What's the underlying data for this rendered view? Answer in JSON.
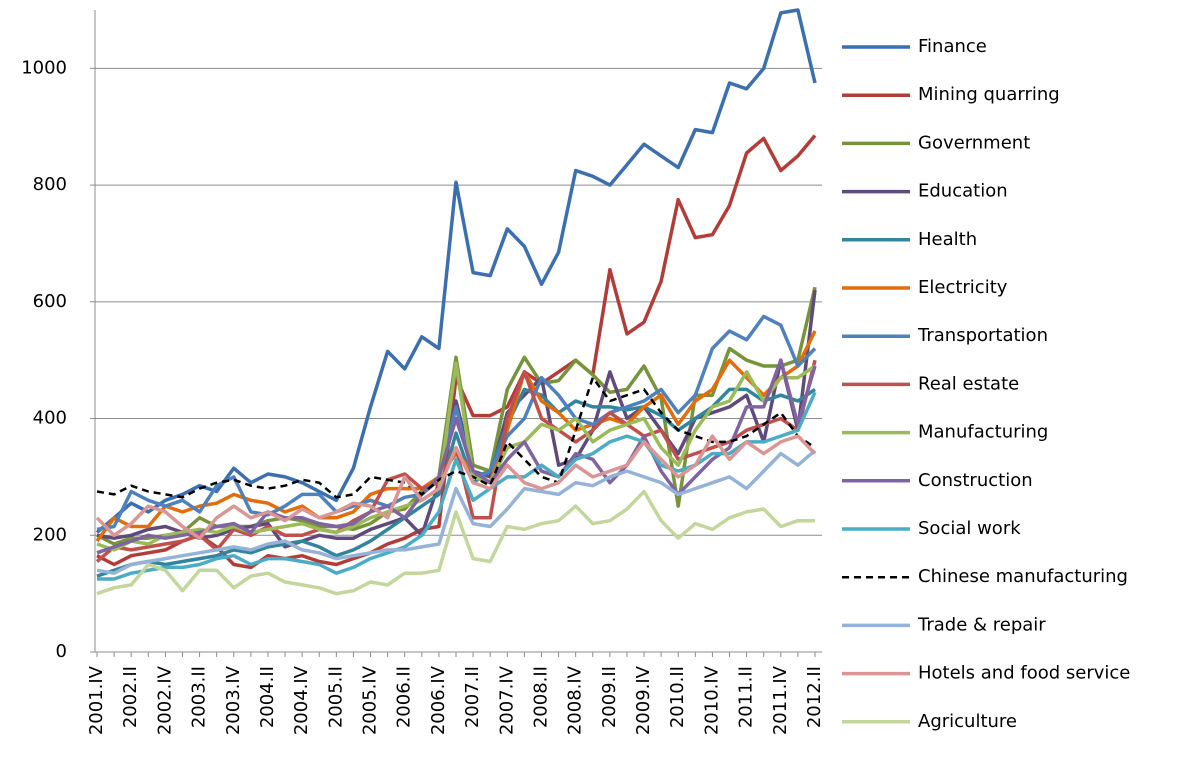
{
  "chart_data": {
    "type": "line",
    "categories": [
      "2001.IV",
      null,
      "2002.II",
      null,
      "2002.IV",
      null,
      "2003.II",
      null,
      "2003.IV",
      null,
      "2004.II",
      null,
      "2004.IV",
      null,
      "2005.II",
      null,
      "2005.IV",
      null,
      "2006.II",
      null,
      "2006.IV",
      null,
      "2007.II",
      null,
      "2007.IV",
      null,
      "2008.II",
      null,
      "2008.IV",
      null,
      "2009.II",
      null,
      "2009.IV",
      null,
      "2010.II",
      null,
      "2010.IV",
      null,
      "2011.II",
      null,
      "2011.IV",
      null,
      "2012.II"
    ],
    "ylim": [
      0,
      1100
    ],
    "yticks": [
      0,
      200,
      400,
      600,
      800,
      1000
    ],
    "grid": true,
    "legend": "right",
    "series": [
      {
        "name": "Finance",
        "color": "#3b6fb0",
        "values": [
          205,
          230,
          255,
          240,
          260,
          270,
          285,
          275,
          315,
          290,
          305,
          300,
          290,
          275,
          260,
          315,
          420,
          515,
          485,
          540,
          520,
          805,
          650,
          645,
          725,
          695,
          630,
          685,
          825,
          815,
          800,
          835,
          870,
          850,
          830,
          895,
          890,
          975,
          965,
          1000,
          1095,
          1100,
          975
        ]
      },
      {
        "name": "Mining quarring",
        "color": "#b23c38",
        "values": [
          165,
          150,
          165,
          170,
          175,
          190,
          200,
          180,
          150,
          145,
          165,
          160,
          165,
          155,
          150,
          160,
          170,
          185,
          195,
          210,
          215,
          470,
          405,
          405,
          420,
          480,
          460,
          480,
          500,
          475,
          655,
          545,
          565,
          635,
          775,
          710,
          715,
          765,
          855,
          880,
          825,
          850,
          885
        ]
      },
      {
        "name": "Government",
        "color": "#77933c",
        "values": [
          200,
          185,
          195,
          195,
          200,
          205,
          230,
          215,
          215,
          215,
          225,
          230,
          225,
          215,
          215,
          210,
          220,
          240,
          245,
          275,
          300,
          505,
          320,
          310,
          450,
          505,
          460,
          465,
          500,
          475,
          445,
          450,
          490,
          435,
          250,
          440,
          440,
          520,
          500,
          490,
          490,
          500,
          625
        ]
      },
      {
        "name": "Education",
        "color": "#604a7b",
        "values": [
          200,
          195,
          200,
          210,
          215,
          205,
          195,
          200,
          210,
          215,
          220,
          180,
          190,
          200,
          195,
          195,
          210,
          220,
          230,
          200,
          290,
          430,
          310,
          300,
          410,
          440,
          470,
          320,
          330,
          380,
          480,
          400,
          420,
          380,
          340,
          400,
          410,
          420,
          440,
          360,
          500,
          380,
          620
        ]
      },
      {
        "name": "Health",
        "color": "#31859c",
        "values": [
          130,
          140,
          150,
          155,
          150,
          155,
          160,
          165,
          175,
          170,
          180,
          185,
          190,
          180,
          165,
          175,
          190,
          210,
          230,
          250,
          270,
          375,
          290,
          310,
          390,
          450,
          440,
          410,
          430,
          420,
          420,
          415,
          420,
          405,
          380,
          400,
          420,
          450,
          450,
          430,
          440,
          430,
          450
        ]
      },
      {
        "name": "Electricity",
        "color": "#e46c0a",
        "values": [
          190,
          230,
          215,
          215,
          250,
          240,
          250,
          255,
          270,
          260,
          255,
          240,
          250,
          230,
          230,
          240,
          270,
          280,
          280,
          280,
          300,
          340,
          310,
          290,
          380,
          480,
          430,
          410,
          380,
          390,
          400,
          390,
          420,
          440,
          390,
          430,
          450,
          500,
          470,
          440,
          470,
          490,
          550
        ]
      },
      {
        "name": "Transportation",
        "color": "#4f81bd",
        "values": [
          210,
          215,
          275,
          260,
          250,
          260,
          240,
          285,
          300,
          240,
          235,
          250,
          270,
          270,
          240,
          250,
          260,
          250,
          265,
          270,
          295,
          420,
          300,
          310,
          370,
          400,
          470,
          440,
          400,
          390,
          410,
          420,
          430,
          450,
          410,
          440,
          520,
          550,
          535,
          575,
          560,
          490,
          520
        ]
      },
      {
        "name": "Real estate",
        "color": "#c0504d",
        "values": [
          155,
          180,
          175,
          180,
          185,
          190,
          200,
          175,
          210,
          200,
          215,
          200,
          200,
          210,
          205,
          225,
          240,
          295,
          305,
          280,
          290,
          350,
          230,
          230,
          400,
          480,
          400,
          380,
          360,
          380,
          410,
          390,
          370,
          380,
          330,
          340,
          350,
          360,
          380,
          390,
          400,
          380,
          500
        ]
      },
      {
        "name": "Manufacturing",
        "color": "#9bbb59",
        "values": [
          185,
          175,
          190,
          185,
          200,
          205,
          210,
          205,
          215,
          205,
          210,
          215,
          220,
          210,
          205,
          215,
          230,
          240,
          250,
          260,
          280,
          495,
          300,
          290,
          350,
          360,
          390,
          380,
          400,
          360,
          380,
          390,
          400,
          350,
          320,
          380,
          420,
          430,
          480,
          430,
          470,
          470,
          490
        ]
      },
      {
        "name": "Construction",
        "color": "#8064a2",
        "values": [
          170,
          180,
          190,
          200,
          195,
          200,
          205,
          215,
          220,
          205,
          240,
          230,
          230,
          220,
          215,
          220,
          240,
          250,
          230,
          270,
          300,
          400,
          310,
          290,
          330,
          360,
          310,
          300,
          340,
          330,
          290,
          320,
          370,
          310,
          270,
          300,
          330,
          350,
          420,
          420,
          500,
          390,
          490
        ]
      },
      {
        "name": "Social work",
        "color": "#4bacc6",
        "values": [
          125,
          125,
          135,
          140,
          145,
          145,
          150,
          160,
          165,
          150,
          160,
          160,
          155,
          150,
          135,
          145,
          160,
          170,
          180,
          200,
          240,
          330,
          260,
          280,
          300,
          300,
          320,
          300,
          330,
          340,
          360,
          370,
          360,
          320,
          310,
          320,
          340,
          340,
          360,
          360,
          370,
          380,
          445
        ]
      },
      {
        "name": "Chinese manufacturing",
        "color": "#000000",
        "linestyle": "dashed",
        "values": [
          275,
          270,
          285,
          275,
          270,
          265,
          280,
          290,
          295,
          285,
          280,
          285,
          295,
          290,
          265,
          270,
          300,
          295,
          290,
          270,
          295,
          310,
          300,
          285,
          360,
          330,
          300,
          290,
          380,
          470,
          430,
          440,
          450,
          410,
          380,
          370,
          360,
          360,
          370,
          390,
          410,
          370,
          350
        ]
      },
      {
        "name": "Trade & repair",
        "color": "#95b3d7",
        "values": [
          140,
          135,
          150,
          155,
          160,
          165,
          170,
          175,
          180,
          175,
          185,
          190,
          175,
          170,
          160,
          165,
          170,
          175,
          175,
          180,
          185,
          280,
          220,
          215,
          245,
          280,
          275,
          270,
          290,
          285,
          300,
          310,
          300,
          290,
          270,
          280,
          290,
          300,
          280,
          310,
          340,
          320,
          345
        ]
      },
      {
        "name": "Hotels and food service",
        "color": "#d99694",
        "values": [
          230,
          200,
          220,
          250,
          240,
          215,
          195,
          230,
          250,
          230,
          240,
          225,
          245,
          230,
          240,
          255,
          250,
          230,
          300,
          260,
          280,
          350,
          290,
          280,
          320,
          290,
          280,
          290,
          320,
          300,
          310,
          320,
          360,
          330,
          300,
          320,
          370,
          330,
          360,
          340,
          360,
          370,
          340
        ]
      },
      {
        "name": "Agriculture",
        "color": "#c3d69b",
        "values": [
          100,
          110,
          115,
          150,
          140,
          105,
          140,
          140,
          110,
          130,
          135,
          120,
          115,
          110,
          100,
          105,
          120,
          115,
          135,
          135,
          140,
          240,
          160,
          155,
          215,
          210,
          220,
          225,
          250,
          220,
          225,
          245,
          275,
          225,
          195,
          220,
          210,
          230,
          240,
          245,
          215,
          225,
          225
        ]
      }
    ]
  }
}
